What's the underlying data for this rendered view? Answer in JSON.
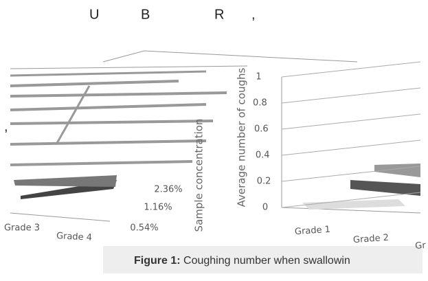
{
  "header": {
    "fragments": [
      "U",
      "B",
      "R",
      ","
    ]
  },
  "side_mark": ",",
  "chart_data": {
    "type": "bar3d",
    "ylabel": "Average number of coughs",
    "zlabel": "Sample concentration",
    "categories": [
      "Grade 1",
      "Grade 2",
      "Gr",
      "Grade 3",
      "Grade 4"
    ],
    "depth_categories": [
      "2.36%",
      "1.16%",
      "0.54%"
    ],
    "ylim": [
      0,
      1
    ],
    "yticks": [
      0,
      0.2,
      0.4,
      0.6,
      0.8,
      1
    ]
  },
  "caption": {
    "label": "Figure 1:",
    "text": "Coughing number when swallowin"
  }
}
